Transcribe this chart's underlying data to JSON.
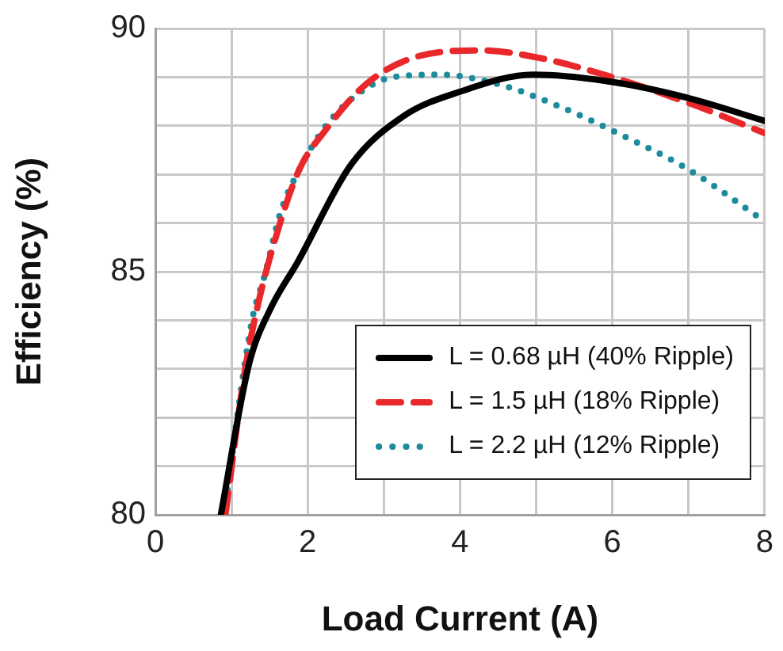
{
  "chart_data": {
    "type": "line",
    "xlabel": "Load Current (A)",
    "ylabel": "Efficiency (%)",
    "xlim": [
      0,
      8
    ],
    "xticks": [
      0,
      {
        "value": 1,
        "label": null
      },
      2,
      {
        "value": 3,
        "label": null
      },
      4,
      {
        "value": 5,
        "label": null
      },
      6,
      {
        "value": 7,
        "label": null
      },
      8
    ],
    "ylim": [
      80,
      90
    ],
    "yticks": [
      80,
      {
        "value": 81,
        "label": null
      },
      {
        "value": 82,
        "label": null
      },
      {
        "value": 83,
        "label": null
      },
      {
        "value": 84,
        "label": null
      },
      85,
      {
        "value": 86,
        "label": null
      },
      {
        "value": 87,
        "label": null
      },
      {
        "value": 88,
        "label": null
      },
      {
        "value": 89,
        "label": null
      },
      90
    ],
    "grid": true,
    "legend": "bottom right",
    "marker": "none",
    "series": [
      {
        "name": "L = 0.68 µH (40% Ripple)",
        "color": "#000000",
        "line_style": "solid",
        "x": [
          0.86,
          1.23,
          1.5,
          1.87,
          2.57,
          3.26,
          4.0,
          4.96,
          6.0,
          7.0,
          8.0
        ],
        "values": [
          80,
          83.1,
          84.2,
          85.2,
          87.2,
          88.2,
          88.7,
          89.05,
          88.9,
          88.57,
          88.1
        ]
      },
      {
        "name": "L = 1.5 µH (18% Ripple)",
        "color": "#e8282b",
        "line_style": "dashed",
        "x": [
          0.92,
          1.17,
          1.33,
          1.58,
          1.89,
          2.23,
          2.77,
          3.39,
          4.28,
          5.03,
          6.0,
          7.0,
          8.0
        ],
        "values": [
          80,
          82.9,
          84.2,
          85.7,
          87.1,
          87.9,
          88.86,
          89.4,
          89.55,
          89.4,
          89.0,
          88.47,
          87.85
        ]
      },
      {
        "name": "L = 2.2 µH (12% Ripple)",
        "color": "#1a8c9c",
        "line_style": "dotted",
        "x": [
          0.9,
          1.27,
          1.44,
          1.64,
          1.89,
          2.23,
          2.64,
          3.12,
          3.73,
          4.49,
          5.3,
          6.0,
          7.0,
          7.94
        ],
        "values": [
          80,
          84.0,
          84.95,
          86.2,
          87.1,
          87.98,
          88.63,
          89.0,
          89.05,
          88.86,
          88.4,
          87.9,
          87.1,
          86.1
        ]
      }
    ]
  }
}
